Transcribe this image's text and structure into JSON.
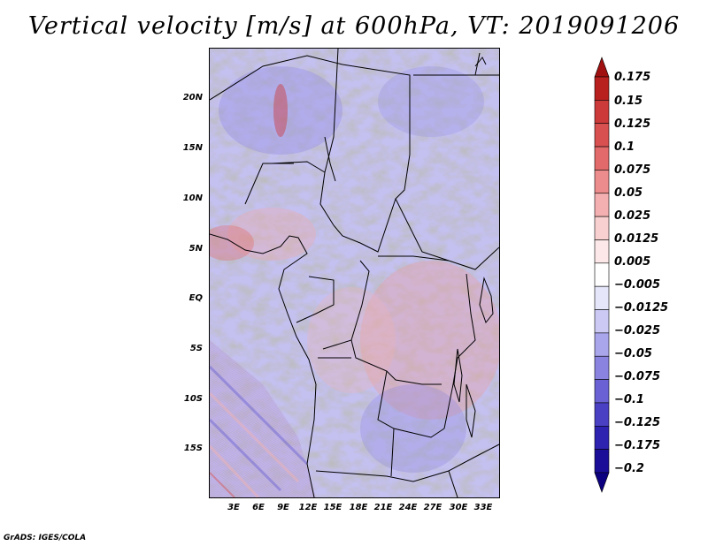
{
  "title": "Vertical velocity [m/s] at 600hPa, VT: 2019091206",
  "footer": "GrADS: IGES/COLA",
  "map": {
    "lat_labels": [
      "20N",
      "15N",
      "10N",
      "5N",
      "EQ",
      "5S",
      "10S",
      "15S"
    ],
    "lon_labels": [
      "3E",
      "6E",
      "9E",
      "12E",
      "15E",
      "18E",
      "21E",
      "24E",
      "27E",
      "30E",
      "33E"
    ]
  },
  "colorbar": {
    "labels": [
      "0.175",
      "0.15",
      "0.125",
      "0.1",
      "0.075",
      "0.05",
      "0.025",
      "0.0125",
      "0.005",
      "−0.005",
      "−0.0125",
      "−0.025",
      "−0.05",
      "−0.075",
      "−0.1",
      "−0.125",
      "−0.175",
      "−0.2"
    ],
    "colors": [
      "#a01010",
      "#b82020",
      "#cc3a3a",
      "#d85050",
      "#e26a6a",
      "#ec8c8c",
      "#f4b0b0",
      "#f8d0d0",
      "#fce8e8",
      "#ffffff",
      "#e6e6fa",
      "#cccaf4",
      "#aaa6ec",
      "#8a84e0",
      "#6a62d4",
      "#4a40c4",
      "#2e22b0",
      "#1a0e98",
      "#0c0080"
    ]
  }
}
